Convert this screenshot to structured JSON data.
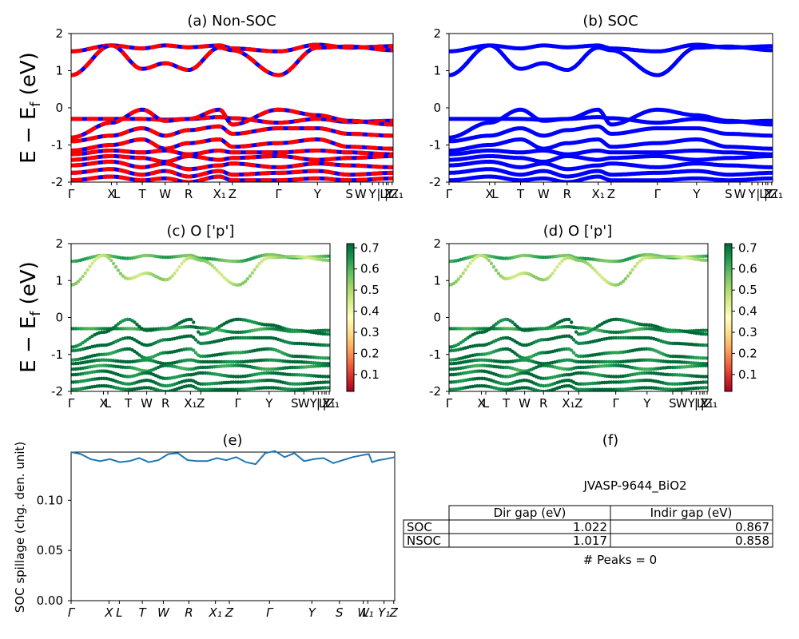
{
  "figure": {
    "ylabel_bands": "E − E",
    "ylabel_bands_sub": "f",
    "ylabel_bands_unit": " (eV)",
    "ylabel_spillage": "SOC spillage (chg. den. unit)",
    "colors": {
      "nonsoc_blue": "#0000ff",
      "nonsoc_red": "#ff0000",
      "soc": "#0000ff",
      "spillage": "#1f77b4"
    },
    "colormap": "RdYlGn"
  },
  "panels": {
    "a": {
      "title": "(a) Non-SOC"
    },
    "b": {
      "title": "(b) SOC"
    },
    "c": {
      "title": "(c)  O ['p']"
    },
    "d": {
      "title": "(d) O ['p']"
    },
    "e": {
      "title": "(e)"
    },
    "f": {
      "title": "(f)"
    }
  },
  "chart_data": [
    {
      "panel": "a",
      "type": "line",
      "title": "(a) Non-SOC",
      "ylabel": "E − E_f (eV)",
      "ylim": [
        -2,
        2
      ],
      "yticks": [
        -2,
        -1,
        0,
        1,
        2
      ],
      "kpath": [
        {
          "label": "Γ",
          "k": 0.0
        },
        {
          "label": "X",
          "k": 0.125
        },
        {
          "label": "L",
          "k": 0.142
        },
        {
          "label": "T",
          "k": 0.221
        },
        {
          "label": "W",
          "k": 0.292
        },
        {
          "label": "R",
          "k": 0.365
        },
        {
          "label": "X₁",
          "k": 0.461
        },
        {
          "label": "Z",
          "k": 0.501
        },
        {
          "label": "Γ",
          "k": 0.644
        },
        {
          "label": "Y",
          "k": 0.765
        },
        {
          "label": "S",
          "k": 0.864
        },
        {
          "label": "W",
          "k": 0.899
        },
        {
          "label": "Y",
          "k": 0.936
        },
        {
          "label": "|",
          "k": 0.955
        },
        {
          "label": "L",
          "k": 0.969
        },
        {
          "label": "|",
          "k": 0.979
        },
        {
          "label": "Z",
          "k": 0.985
        },
        {
          "label": "Y₁",
          "k": 0.997
        },
        {
          "label": "Z₁",
          "k": 1.012
        }
      ],
      "bands": [
        {
          "k": [
            0,
            0.125,
            0.221,
            0.292,
            0.365,
            0.461,
            0.501,
            0.644,
            0.765,
            0.864,
            1.0
          ],
          "E": [
            1.52,
            1.68,
            1.6,
            1.68,
            1.63,
            1.68,
            1.6,
            1.52,
            1.7,
            1.62,
            1.66
          ]
        },
        {
          "k": [
            0,
            0.125,
            0.221,
            0.292,
            0.365,
            0.461,
            0.501,
            0.644,
            0.765,
            0.864,
            1.0
          ],
          "E": [
            0.88,
            1.68,
            1.05,
            1.2,
            1.02,
            1.62,
            1.55,
            0.88,
            1.62,
            1.65,
            1.55
          ]
        },
        {
          "k": [
            0,
            0.125,
            0.221,
            0.292,
            0.365,
            0.461,
            0.501,
            0.644,
            0.765,
            0.864,
            1.0
          ],
          "E": [
            -0.3,
            -0.3,
            -0.3,
            -0.32,
            -0.3,
            -0.25,
            -0.28,
            -0.4,
            -0.3,
            -0.38,
            -0.35
          ]
        },
        {
          "k": [
            0,
            0.125,
            0.221,
            0.292,
            0.365,
            0.461,
            0.501,
            0.644,
            0.765,
            0.864,
            1.0
          ],
          "E": [
            -0.8,
            -0.4,
            -0.05,
            -0.35,
            -0.3,
            -0.05,
            -0.45,
            -0.05,
            -0.2,
            -0.35,
            -0.45
          ]
        },
        {
          "k": [
            0,
            0.125,
            0.221,
            0.292,
            0.365,
            0.461,
            0.501,
            0.644,
            0.765,
            0.864,
            1.0
          ],
          "E": [
            -0.9,
            -0.75,
            -0.55,
            -0.75,
            -0.6,
            -0.5,
            -0.7,
            -0.55,
            -0.55,
            -0.7,
            -0.75
          ]
        },
        {
          "k": [
            0,
            0.125,
            0.221,
            0.292,
            0.365,
            0.461,
            0.501,
            0.644,
            0.765,
            0.864,
            1.0
          ],
          "E": [
            -1.15,
            -1.0,
            -0.85,
            -1.1,
            -0.95,
            -0.85,
            -1.05,
            -0.95,
            -0.85,
            -1.05,
            -1.1
          ]
        },
        {
          "k": [
            0,
            0.125,
            0.221,
            0.292,
            0.365,
            0.461,
            0.501,
            0.644,
            0.765,
            0.864,
            1.0
          ],
          "E": [
            -1.25,
            -1.15,
            -1.2,
            -1.15,
            -1.25,
            -1.15,
            -1.2,
            -1.2,
            -1.15,
            -1.2,
            -1.25
          ]
        },
        {
          "k": [
            0,
            0.125,
            0.221,
            0.292,
            0.365,
            0.461,
            0.501,
            0.644,
            0.765,
            0.864,
            1.0
          ],
          "E": [
            -1.4,
            -1.3,
            -1.35,
            -1.45,
            -1.3,
            -1.4,
            -1.35,
            -1.3,
            -1.4,
            -1.35,
            -1.3
          ]
        },
        {
          "k": [
            0,
            0.125,
            0.221,
            0.292,
            0.365,
            0.461,
            0.501,
            0.644,
            0.765,
            0.864,
            1.0
          ],
          "E": [
            -1.55,
            -1.45,
            -1.6,
            -1.5,
            -1.65,
            -1.55,
            -1.5,
            -1.6,
            -1.5,
            -1.55,
            -1.6
          ]
        },
        {
          "k": [
            0,
            0.125,
            0.221,
            0.292,
            0.365,
            0.461,
            0.501,
            0.644,
            0.765,
            0.864,
            1.0
          ],
          "E": [
            -1.75,
            -1.65,
            -1.8,
            -1.7,
            -1.85,
            -1.7,
            -1.8,
            -1.75,
            -1.7,
            -1.8,
            -1.75
          ]
        },
        {
          "k": [
            0,
            0.125,
            0.221,
            0.292,
            0.365,
            0.461,
            0.501,
            0.644,
            0.765,
            0.864,
            1.0
          ],
          "E": [
            -1.95,
            -1.85,
            -1.95,
            -1.9,
            -2.0,
            -1.85,
            -1.95,
            -1.95,
            -1.9,
            -1.95,
            -1.9
          ]
        }
      ]
    },
    {
      "panel": "b",
      "type": "line",
      "title": "(b) SOC",
      "ylim": [
        -2,
        2
      ],
      "yticks": [
        -2,
        -1,
        0,
        1,
        2
      ],
      "same_kpath_as": "a",
      "bands_same_as": "a"
    },
    {
      "panel": "c",
      "type": "scatter",
      "title": "(c)  O ['p']",
      "ylabel": "E − E_f (eV)",
      "ylim": [
        -2,
        2
      ],
      "yticks": [
        -2,
        -1,
        0,
        1,
        2
      ],
      "kpath": [
        {
          "label": "Γ",
          "k": 0.0
        },
        {
          "label": "X",
          "k": 0.125
        },
        {
          "label": "L",
          "k": 0.142
        },
        {
          "label": "T",
          "k": 0.221
        },
        {
          "label": "W",
          "k": 0.292
        },
        {
          "label": "R",
          "k": 0.365
        },
        {
          "label": "X₁",
          "k": 0.461
        },
        {
          "label": "Z",
          "k": 0.501
        },
        {
          "label": "Γ",
          "k": 0.644
        },
        {
          "label": "Y",
          "k": 0.765
        },
        {
          "label": "S",
          "k": 0.864
        },
        {
          "label": "W",
          "k": 0.899
        },
        {
          "label": "Y",
          "k": 0.936
        },
        {
          "label": "|",
          "k": 0.955
        },
        {
          "label": "L",
          "k": 0.969
        },
        {
          "label": "|",
          "k": 0.979
        },
        {
          "label": "Z",
          "k": 0.985
        },
        {
          "label": "Y₁",
          "k": 0.997
        },
        {
          "label": "Z₁",
          "k": 1.012
        }
      ],
      "colorbar": {
        "min": 0.02,
        "max": 0.72,
        "ticks": [
          0.1,
          0.2,
          0.3,
          0.4,
          0.5,
          0.6,
          0.7
        ]
      },
      "band_weights": [
        0.6,
        0.5,
        0.65,
        0.7,
        0.72,
        0.68,
        0.7,
        0.66,
        0.69,
        0.7,
        0.71
      ]
    },
    {
      "panel": "d",
      "type": "scatter",
      "title": "(d) O ['p']",
      "ylim": [
        -2,
        2
      ],
      "yticks": [
        -2,
        -1,
        0,
        1,
        2
      ],
      "same_kpath_as": "c",
      "colorbar": {
        "min": 0.02,
        "max": 0.72,
        "ticks": [
          0.1,
          0.2,
          0.3,
          0.4,
          0.5,
          0.6,
          0.7
        ]
      }
    },
    {
      "panel": "e",
      "type": "line",
      "title": "(e)",
      "ylabel": "SOC spillage (chg. den. unit)",
      "ylim": [
        0.0,
        0.148
      ],
      "yticks": [
        0.0,
        0.05,
        0.1
      ],
      "xticks": [
        {
          "label": "Γ",
          "k": 0.0
        },
        {
          "label": "X",
          "k": 0.117
        },
        {
          "label": "L",
          "k": 0.149
        },
        {
          "label": "T",
          "k": 0.22
        },
        {
          "label": "W",
          "k": 0.285
        },
        {
          "label": "R",
          "k": 0.364
        },
        {
          "label": "X₁",
          "k": 0.446
        },
        {
          "label": "Z",
          "k": 0.489
        },
        {
          "label": "Γ",
          "k": 0.613
        },
        {
          "label": "Y",
          "k": 0.744
        },
        {
          "label": "S",
          "k": 0.829
        },
        {
          "label": "W",
          "k": 0.903
        },
        {
          "label": "L₁",
          "k": 0.917
        },
        {
          "label": "Y₁",
          "k": 0.967
        },
        {
          "label": "Z",
          "k": 0.997
        }
      ],
      "k": [
        0.0,
        0.03,
        0.06,
        0.09,
        0.12,
        0.15,
        0.18,
        0.21,
        0.24,
        0.27,
        0.3,
        0.33,
        0.36,
        0.39,
        0.42,
        0.45,
        0.48,
        0.51,
        0.54,
        0.57,
        0.6,
        0.63,
        0.66,
        0.69,
        0.72,
        0.75,
        0.78,
        0.81,
        0.84,
        0.87,
        0.9,
        0.92,
        0.93,
        0.95,
        0.97,
        1.0
      ],
      "values": [
        0.148,
        0.146,
        0.141,
        0.139,
        0.141,
        0.138,
        0.139,
        0.142,
        0.138,
        0.14,
        0.146,
        0.147,
        0.14,
        0.139,
        0.139,
        0.142,
        0.14,
        0.143,
        0.138,
        0.136,
        0.147,
        0.149,
        0.143,
        0.147,
        0.139,
        0.141,
        0.142,
        0.137,
        0.14,
        0.143,
        0.145,
        0.146,
        0.138,
        0.14,
        0.141,
        0.143
      ]
    },
    {
      "panel": "f",
      "type": "table",
      "title": "(f)",
      "caption": "JVASP-9644_BiO2",
      "columns": [
        "",
        "Dir gap (eV)",
        "Indir gap (eV)"
      ],
      "rows": [
        [
          "SOC",
          "1.022",
          "0.867"
        ],
        [
          "NSOC",
          "1.017",
          "0.858"
        ]
      ],
      "footer": "# Peaks = 0"
    }
  ]
}
